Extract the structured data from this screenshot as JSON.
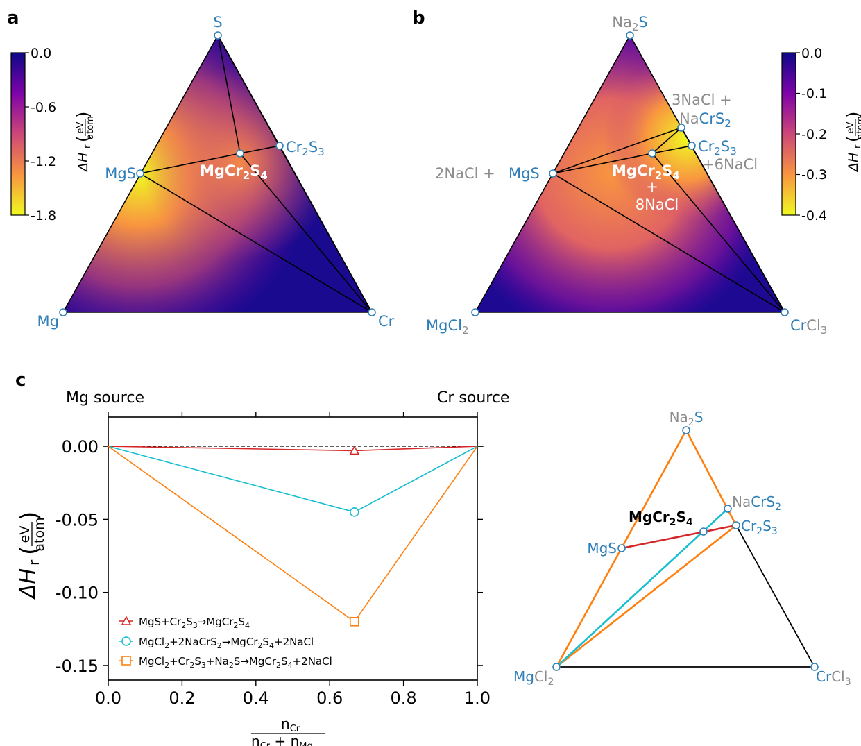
{
  "panel_labels": {
    "a": "a",
    "b": "b",
    "c": "c"
  },
  "panel_a": {
    "vertex_labels": {
      "top": "S",
      "left": "Mg",
      "right": "Cr"
    },
    "MgS": "MgS",
    "Cr2S3": {
      "base": "Cr",
      "sub1": "2",
      "mid": "S",
      "sub2": "3"
    },
    "MgCr2S4": {
      "a": "MgCr",
      "s1": "2",
      "b": "S",
      "s2": "4"
    },
    "colorbar": {
      "ticks": [
        "0.0",
        "-0.6",
        "-1.2",
        "-1.8"
      ],
      "label": "ΔH",
      "label_sub": "r",
      "unit_num": "eV",
      "unit_den": "atom"
    }
  },
  "panel_b": {
    "vertex_top": {
      "a": "Na",
      "s": "2",
      "b": "S"
    },
    "vertex_left": {
      "a": "MgCl",
      "s": "2"
    },
    "vertex_right": {
      "a": "Cr",
      "b": "Cl",
      "s": "3"
    },
    "nacrs2_line1": "3NaCl +",
    "nacrs2_line2": {
      "a": "Na",
      "b": "CrS",
      "s": "2"
    },
    "cr2s3": {
      "base": "Cr",
      "sub1": "2",
      "mid": "S",
      "sub2": "3"
    },
    "cr2s3_extra": "+6NaCl",
    "mgs_prefix": "2NaCl +",
    "mgs": "MgS",
    "center": {
      "a": "MgCr",
      "s1": "2",
      "b": "S",
      "s2": "4"
    },
    "center_plus": "+",
    "center_nacl": "8NaCl",
    "colorbar": {
      "ticks": [
        "0.0",
        "-0.1",
        "-0.2",
        "-0.3",
        "-0.4"
      ],
      "label": "ΔH",
      "label_sub": "r",
      "unit_num": "eV",
      "unit_den": "atom"
    }
  },
  "panel_c": {
    "top_left_label": "Mg source",
    "top_right_label": "Cr source",
    "xlabel_num": "n",
    "xlabel_num_sub": "Cr",
    "xlabel_den_a": "n",
    "xlabel_den_a_sub": "Cr",
    "xlabel_den_plus": " + n",
    "xlabel_den_b_sub": "Mg",
    "ylabel": "ΔH",
    "ylabel_sub": "r",
    "yunit_num": "eV",
    "yunit_den": "atom",
    "legend": [
      {
        "text_html": "MgS+Cr<sub>2</sub>S<sub>3</sub>→MgCr<sub>2</sub>S<sub>4</sub>"
      },
      {
        "text_html": "MgCl<sub>2</sub>+2NaCrS<sub>2</sub>→MgCr<sub>2</sub>S<sub>4</sub>+2NaCl"
      },
      {
        "text_html": "MgCl<sub>2</sub>+Cr<sub>2</sub>S<sub>3</sub>+Na<sub>2</sub>S→MgCr<sub>2</sub>S<sub>4</sub>+2NaCl"
      }
    ],
    "legend_plain": [
      [
        "MgS+Cr",
        "2",
        "S",
        "3",
        "→MgCr",
        "2",
        "S",
        "4"
      ],
      [
        "MgCl",
        "2",
        "+2NaCrS",
        "2",
        "→MgCr",
        "2",
        "S",
        "4",
        "+2NaCl"
      ],
      [
        "MgCl",
        "2",
        "+Cr",
        "2",
        "S",
        "3",
        "+Na",
        "2",
        "S→MgCr",
        "2",
        "S",
        "4",
        "+2NaCl"
      ]
    ]
  },
  "panel_c_ternary": {
    "na2s": {
      "a": "Na",
      "s": "2",
      "b": "S"
    },
    "nacrs2": {
      "a": "Na",
      "b": "CrS",
      "s": "2"
    },
    "cr2s3": {
      "base": "Cr",
      "sub1": "2",
      "mid": "S",
      "sub2": "3"
    },
    "mgs": "MgS",
    "mgcr2s4": {
      "a": "MgCr",
      "s1": "2",
      "b": "S",
      "s2": "4"
    },
    "mgcl2": {
      "a": "Mg",
      "b": "Cl",
      "s": "2"
    },
    "crcl3": {
      "a": "Cr",
      "b": "Cl",
      "s": "3"
    }
  },
  "chart_data": {
    "type": "line",
    "xlabel": "n_Cr / (n_Cr + n_Mg)",
    "ylabel": "ΔH_r (eV/atom)",
    "xlim": [
      0.0,
      1.0
    ],
    "ylim": [
      -0.16,
      0.02
    ],
    "xticks": [
      "0.0",
      "0.2",
      "0.4",
      "0.6",
      "0.8",
      "1.0"
    ],
    "yticks": [
      "0.00",
      "-0.05",
      "-0.10",
      "-0.15"
    ],
    "series": [
      {
        "name": "MgS+Cr2S3→MgCr2S4",
        "color": "#d62728",
        "marker": "triangle",
        "x": [
          0,
          0.667,
          1
        ],
        "y": [
          0,
          -0.003,
          0
        ]
      },
      {
        "name": "MgCl2+2NaCrS2→MgCr2S4+2NaCl",
        "color": "#17becf",
        "marker": "circle",
        "x": [
          0,
          0.667,
          1
        ],
        "y": [
          0,
          -0.045,
          0
        ]
      },
      {
        "name": "MgCl2+Cr2S3+Na2S→MgCr2S4+2NaCl",
        "color": "#ff7f0e",
        "marker": "square",
        "x": [
          0,
          0.667,
          1
        ],
        "y": [
          0,
          -0.12,
          0
        ]
      }
    ]
  }
}
